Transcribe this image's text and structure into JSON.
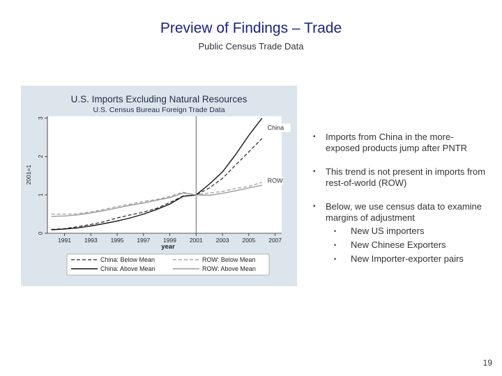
{
  "slide": {
    "title": "Preview of Findings – Trade",
    "subtitle": "Public Census Trade Data",
    "page_number": "19"
  },
  "bullets": [
    {
      "text": "Imports from China in the more-exposed products jump after PNTR"
    },
    {
      "text": "This trend is not present in imports from rest-of-world (ROW)"
    },
    {
      "text": "Below, we use census data to examine margins of adjustment",
      "sub": [
        "New US importers",
        "New Chinese Exporters",
        "New Importer-exporter pairs"
      ]
    }
  ],
  "chart_data": {
    "type": "line",
    "title": "U.S. Imports Excluding Natural Resources",
    "subtitle": "U.S. Census Bureau Foreign Trade Data",
    "xlabel": "year",
    "ylabel": "2001=1",
    "x": [
      1990,
      1991,
      1992,
      1993,
      1994,
      1995,
      1996,
      1997,
      1998,
      1999,
      2000,
      2001,
      2002,
      2003,
      2004,
      2005,
      2006
    ],
    "xticks": [
      1991,
      1993,
      1995,
      1997,
      1999,
      2001,
      2003,
      2005,
      2007
    ],
    "yticks": [
      0,
      1,
      2,
      3
    ],
    "xlim": [
      1989.7,
      2007.5
    ],
    "ylim": [
      0,
      3.05
    ],
    "vline": 2001,
    "series": [
      {
        "name": "China: Below Mean",
        "style": "dashed",
        "color": "#222222",
        "values": [
          0.1,
          0.12,
          0.17,
          0.23,
          0.3,
          0.4,
          0.48,
          0.55,
          0.65,
          0.8,
          0.97,
          1.0,
          1.18,
          1.43,
          1.78,
          2.12,
          2.47
        ]
      },
      {
        "name": "China: Above Mean",
        "style": "solid",
        "color": "#111111",
        "values": [
          0.09,
          0.11,
          0.14,
          0.19,
          0.25,
          0.32,
          0.4,
          0.5,
          0.62,
          0.76,
          0.96,
          1.0,
          1.28,
          1.6,
          2.05,
          2.55,
          3.0
        ]
      },
      {
        "name": "ROW: Below Mean",
        "style": "dashed",
        "color": "#999999",
        "values": [
          0.5,
          0.5,
          0.51,
          0.56,
          0.62,
          0.7,
          0.76,
          0.83,
          0.88,
          0.96,
          1.07,
          1.0,
          1.05,
          1.09,
          1.17,
          1.22,
          1.33
        ]
      },
      {
        "name": "ROW: Above Mean",
        "style": "solid",
        "color": "#999999",
        "values": [
          0.44,
          0.45,
          0.48,
          0.53,
          0.59,
          0.66,
          0.73,
          0.79,
          0.86,
          0.93,
          1.05,
          1.0,
          0.99,
          1.04,
          1.11,
          1.18,
          1.25
        ]
      }
    ],
    "annotations": [
      {
        "text": "China",
        "x": 2006,
        "y": 2.75
      },
      {
        "text": "ROW",
        "x": 2006,
        "y": 1.37
      }
    ],
    "legend_placement": "bottom",
    "grid": false
  }
}
